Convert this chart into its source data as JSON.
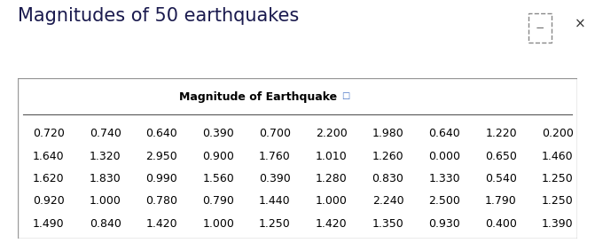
{
  "title": "Magnitudes of 50 earthquakes",
  "table_header": "Magnitude of Earthquake",
  "table_data": [
    [
      0.72,
      0.74,
      0.64,
      0.39,
      0.7,
      2.2,
      1.98,
      0.64,
      1.22,
      0.2
    ],
    [
      1.64,
      1.32,
      2.95,
      0.9,
      1.76,
      1.01,
      1.26,
      0.0,
      0.65,
      1.46
    ],
    [
      1.62,
      1.83,
      0.99,
      1.56,
      0.39,
      1.28,
      0.83,
      1.33,
      0.54,
      1.25
    ],
    [
      0.92,
      1.0,
      0.78,
      0.79,
      1.44,
      1.0,
      2.24,
      2.5,
      1.79,
      1.25
    ],
    [
      1.49,
      0.84,
      1.42,
      1.0,
      1.25,
      1.42,
      1.35,
      0.93,
      0.4,
      1.39
    ]
  ],
  "bg_color": "#ffffff",
  "title_color": "#1a1a4e",
  "title_fontsize": 15,
  "header_fontsize": 9,
  "data_fontsize": 9,
  "icon_color": "#4472C4",
  "border_color": "#999999",
  "line_color": "#555555"
}
